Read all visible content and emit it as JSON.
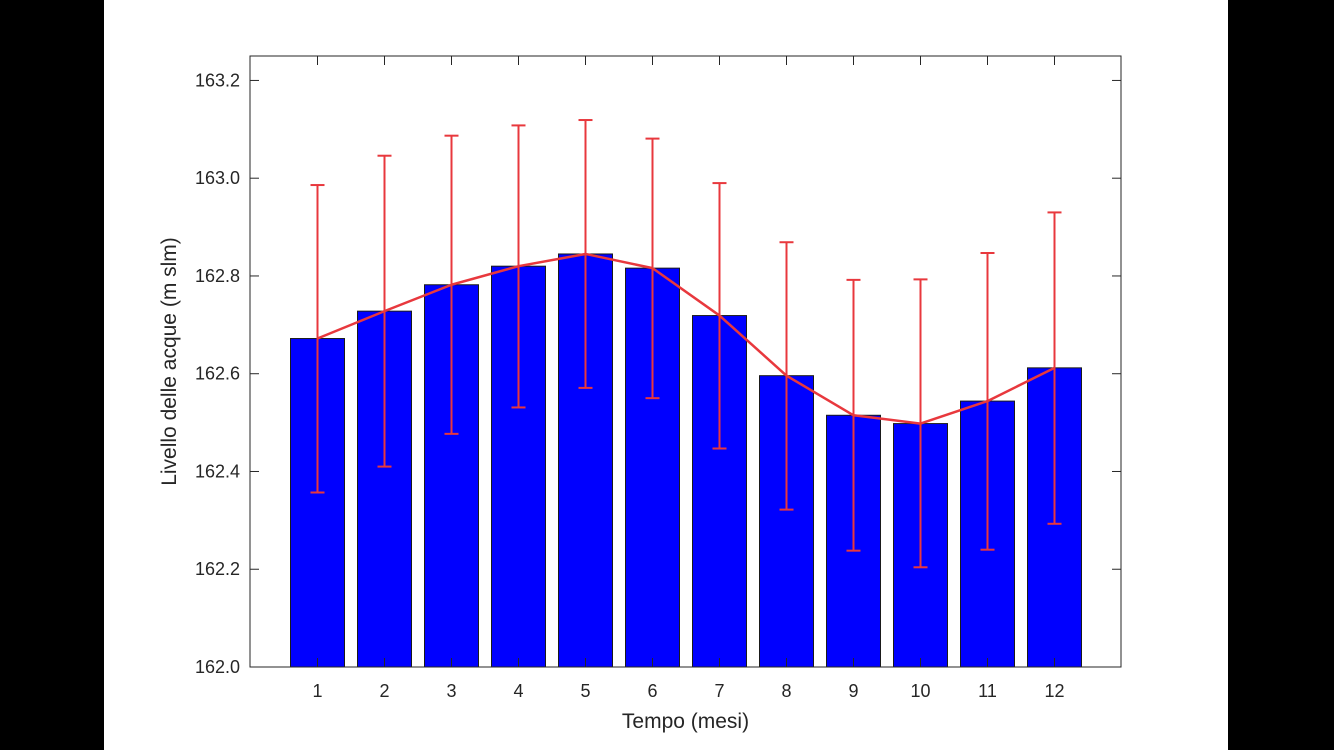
{
  "chart_data": {
    "type": "bar",
    "title": "",
    "xlabel": "Tempo (mesi)",
    "ylabel": "Livello delle acque (m slm)",
    "categories": [
      "1",
      "2",
      "3",
      "4",
      "5",
      "6",
      "7",
      "8",
      "9",
      "10",
      "11",
      "12"
    ],
    "ylim": [
      162.0,
      163.25
    ],
    "yticks": [
      "162.0",
      "162.2",
      "162.4",
      "162.6",
      "162.8",
      "163.0",
      "163.2"
    ],
    "series": [
      {
        "kind": "bar",
        "values": [
          162.672,
          162.728,
          162.782,
          162.82,
          162.845,
          162.816,
          162.719,
          162.596,
          162.515,
          162.498,
          162.544,
          162.612
        ],
        "color": "#0000ff"
      },
      {
        "kind": "line",
        "values": [
          162.672,
          162.728,
          162.782,
          162.82,
          162.845,
          162.816,
          162.719,
          162.596,
          162.515,
          162.498,
          162.544,
          162.612
        ],
        "color": "#e8383d"
      }
    ],
    "error_bars": {
      "color": "#e8383d",
      "lower": [
        162.357,
        162.41,
        162.477,
        162.531,
        162.571,
        162.55,
        162.447,
        162.322,
        162.238,
        162.204,
        162.24,
        162.293
      ],
      "upper": [
        162.986,
        163.046,
        163.087,
        163.108,
        163.119,
        163.081,
        162.99,
        162.869,
        162.792,
        162.793,
        162.847,
        162.93
      ]
    },
    "grid": false,
    "legend": "none"
  },
  "colors": {
    "background": "#000000",
    "figure": "#ffffff",
    "axes": "#262626",
    "bar_edge": "#1a1a1a"
  }
}
